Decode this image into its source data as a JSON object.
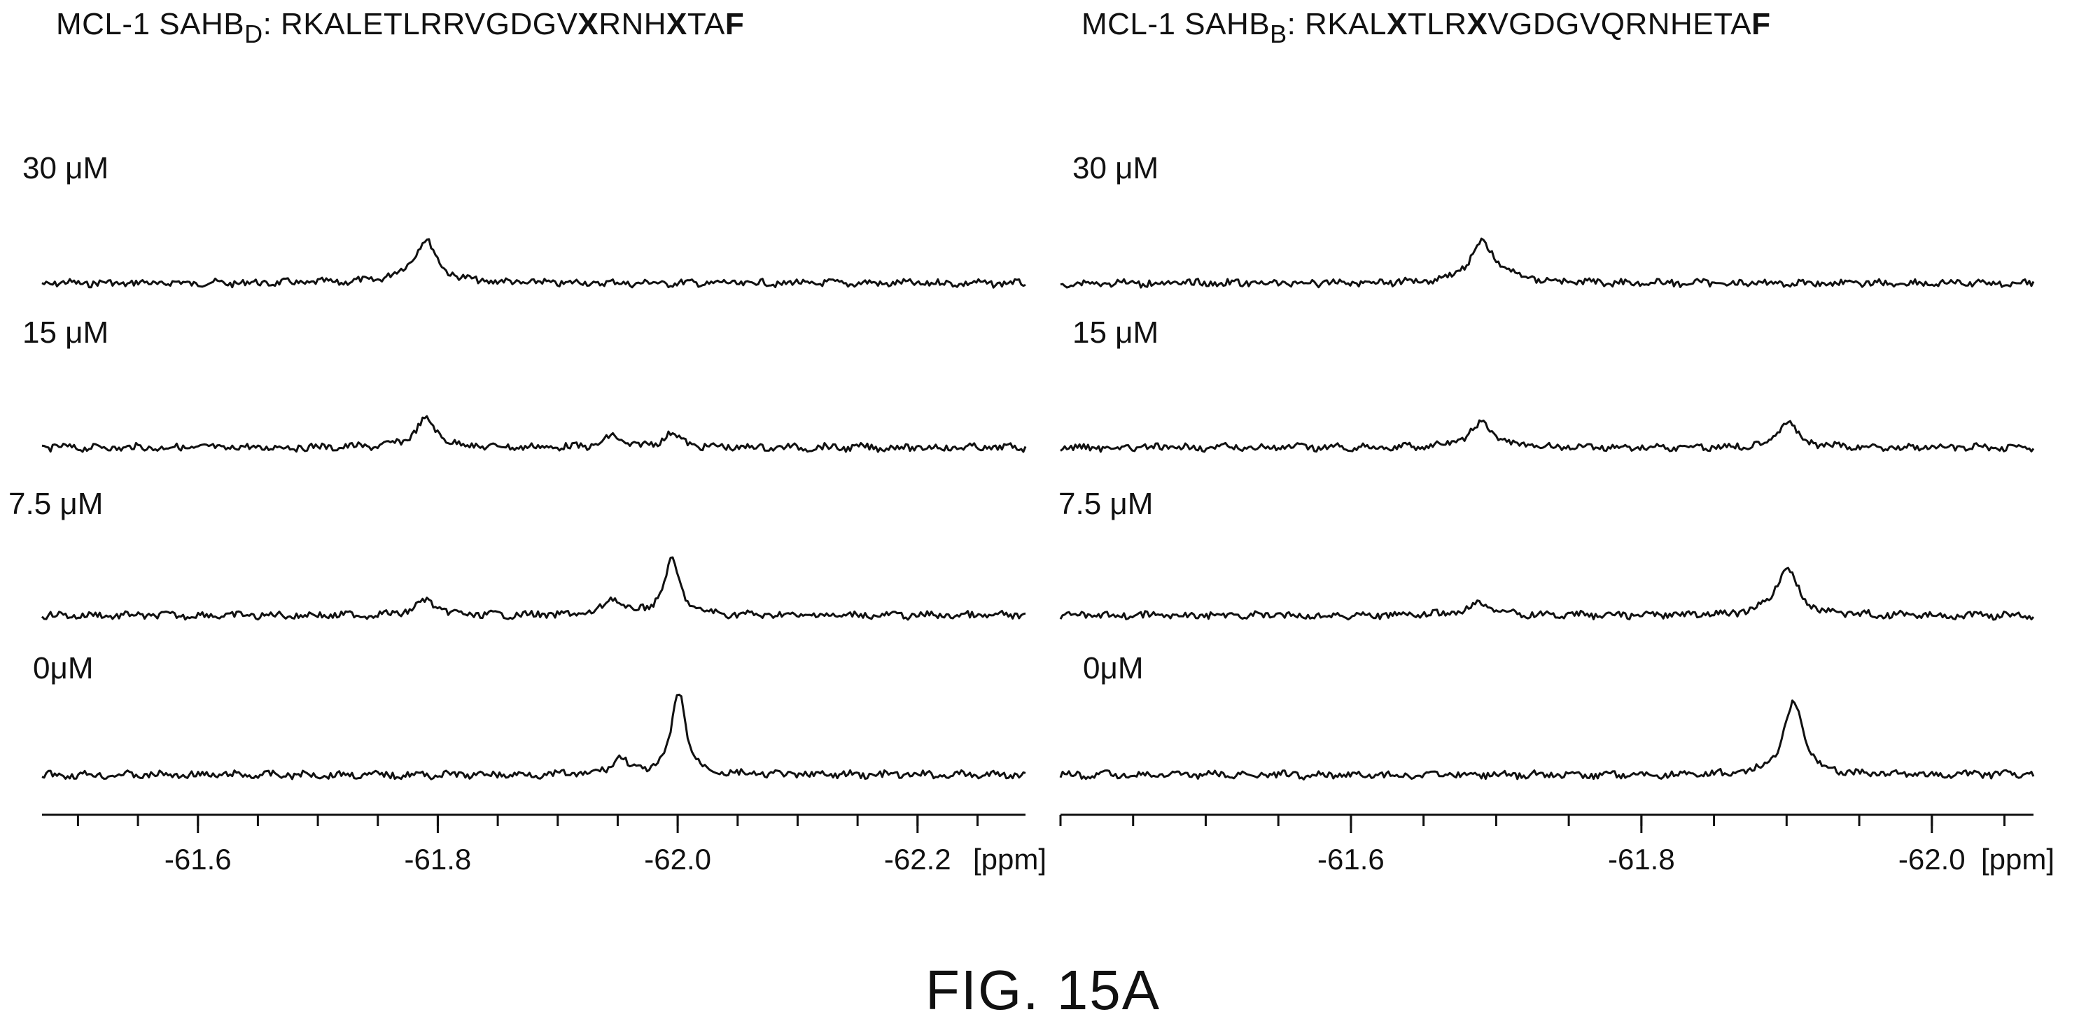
{
  "chart_data": [
    {
      "type": "line",
      "title": {
        "prefix": "MCL-1 SAHB",
        "subscript": "D",
        "segments": [
          {
            "text": ": RKALETLRRVGDGV",
            "bold": false
          },
          {
            "text": "X",
            "bold": true
          },
          {
            "text": "RNH",
            "bold": false
          },
          {
            "text": "X",
            "bold": true
          },
          {
            "text": "TA",
            "bold": false
          },
          {
            "text": "F",
            "bold": true
          }
        ]
      },
      "xlabel": "[ppm]",
      "xlim": [
        -61.47,
        -62.29
      ],
      "xticks": [
        -61.6,
        -61.8,
        -62.0,
        -62.2
      ],
      "tick_labels": [
        "-61.6",
        "-61.8",
        "-62.0",
        "-62.2"
      ],
      "minor_tick_step": 0.05,
      "series": [
        {
          "name": "30 μM",
          "peaks": [
            {
              "ppm": -61.79,
              "height": 0.3,
              "width": 0.011
            },
            {
              "ppm": -61.78,
              "height": 0.05,
              "width": 0.02
            }
          ]
        },
        {
          "name": "15 μM",
          "peaks": [
            {
              "ppm": -61.79,
              "height": 0.22,
              "width": 0.011
            },
            {
              "ppm": -61.946,
              "height": 0.09,
              "width": 0.008
            },
            {
              "ppm": -61.995,
              "height": 0.12,
              "width": 0.008
            }
          ]
        },
        {
          "name": "7.5 μM",
          "peaks": [
            {
              "ppm": -61.79,
              "height": 0.12,
              "width": 0.01
            },
            {
              "ppm": -61.946,
              "height": 0.13,
              "width": 0.008
            },
            {
              "ppm": -61.995,
              "height": 0.43,
              "width": 0.008
            }
          ]
        },
        {
          "name": "0μM",
          "peaks": [
            {
              "ppm": -61.952,
              "height": 0.14,
              "width": 0.007
            },
            {
              "ppm": -62.001,
              "height": 0.66,
              "width": 0.007
            }
          ]
        }
      ]
    },
    {
      "type": "line",
      "title": {
        "prefix": "MCL-1 SAHB",
        "subscript": "B",
        "segments": [
          {
            "text": ": RKAL",
            "bold": false
          },
          {
            "text": "X",
            "bold": true
          },
          {
            "text": "TLR",
            "bold": false
          },
          {
            "text": "X",
            "bold": true
          },
          {
            "text": "VGDGVQRNHETA",
            "bold": false
          },
          {
            "text": "F",
            "bold": true
          }
        ]
      },
      "xlabel": "[ppm]",
      "xlim": [
        -61.4,
        -62.07
      ],
      "xticks": [
        -61.6,
        -61.8,
        -62.0
      ],
      "tick_labels": [
        "-61.6",
        "-61.8",
        "-62.0"
      ],
      "minor_tick_step": 0.05,
      "series": [
        {
          "name": "30 μM",
          "peaks": [
            {
              "ppm": -61.69,
              "height": 0.28,
              "width": 0.01
            },
            {
              "ppm": -61.7,
              "height": 0.05,
              "width": 0.02
            }
          ]
        },
        {
          "name": "15 μM",
          "peaks": [
            {
              "ppm": -61.69,
              "height": 0.19,
              "width": 0.01
            },
            {
              "ppm": -61.9,
              "height": 0.21,
              "width": 0.008
            }
          ]
        },
        {
          "name": "7.5 μM",
          "peaks": [
            {
              "ppm": -61.69,
              "height": 0.1,
              "width": 0.01
            },
            {
              "ppm": -61.9,
              "height": 0.38,
              "width": 0.009
            }
          ]
        },
        {
          "name": "0μM",
          "peaks": [
            {
              "ppm": -61.905,
              "height": 0.58,
              "width": 0.008
            }
          ]
        }
      ]
    }
  ],
  "caption": "FIG. 15A"
}
